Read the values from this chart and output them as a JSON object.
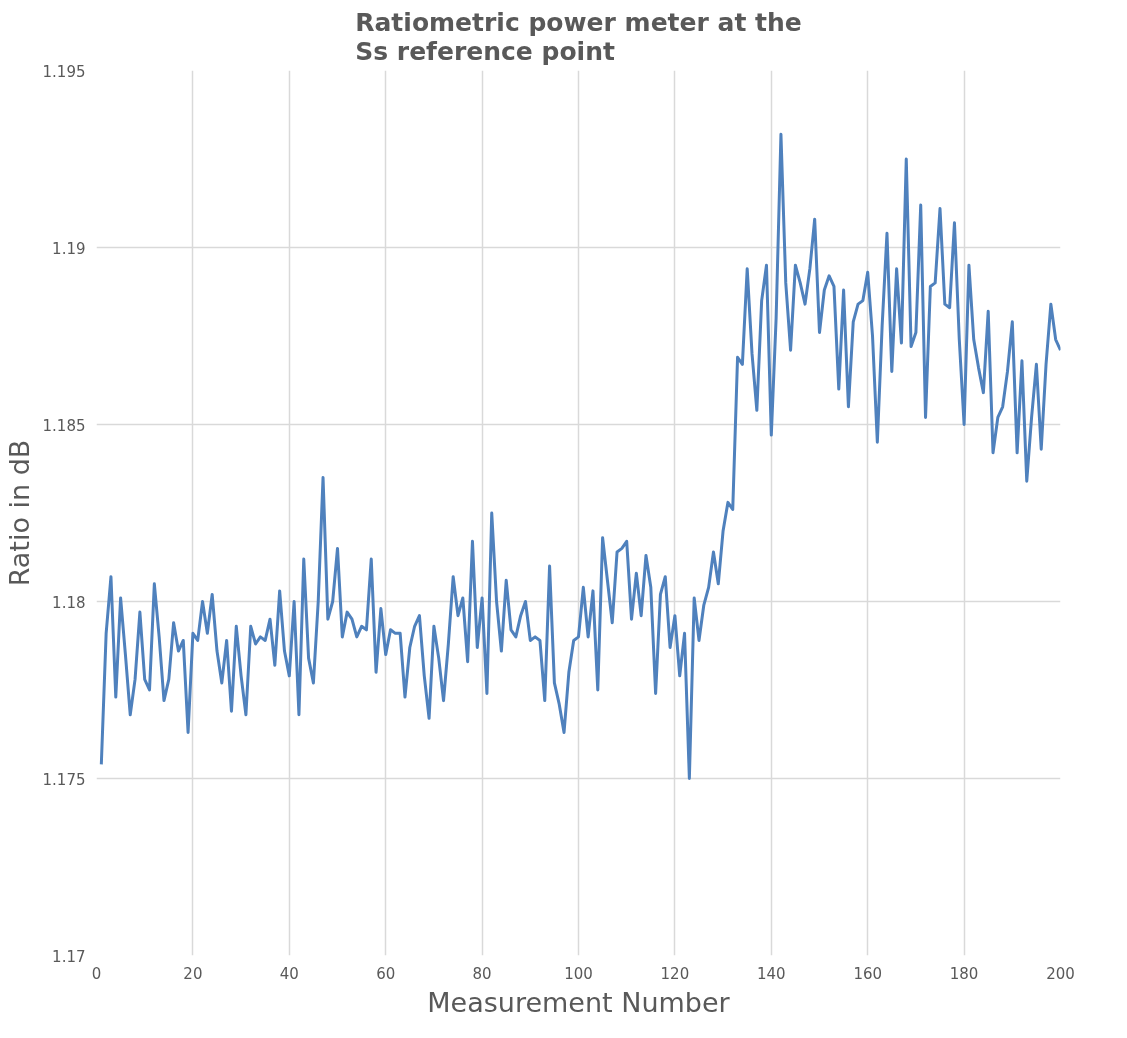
{
  "chart_data": {
    "type": "line",
    "title": "Ratiometric power meter at the\nSs reference point",
    "xlabel": "Measurement Number",
    "ylabel": "Ratio in dB",
    "x": [
      1,
      2,
      3,
      4,
      5,
      6,
      7,
      8,
      9,
      10,
      11,
      12,
      13,
      14,
      15,
      16,
      17,
      18,
      19,
      20,
      21,
      22,
      23,
      24,
      25,
      26,
      27,
      28,
      29,
      30,
      31,
      32,
      33,
      34,
      35,
      36,
      37,
      38,
      39,
      40,
      41,
      42,
      43,
      44,
      45,
      46,
      47,
      48,
      49,
      50,
      51,
      52,
      53,
      54,
      55,
      56,
      57,
      58,
      59,
      60,
      61,
      62,
      63,
      64,
      65,
      66,
      67,
      68,
      69,
      70,
      71,
      72,
      73,
      74,
      75,
      76,
      77,
      78,
      79,
      80,
      81,
      82,
      83,
      84,
      85,
      86,
      87,
      88,
      89,
      90,
      91,
      92,
      93,
      94,
      95,
      96,
      97,
      98,
      99,
      100,
      101,
      102,
      103,
      104,
      105,
      106,
      107,
      108,
      109,
      110,
      111,
      112,
      113,
      114,
      115,
      116,
      117,
      118,
      119,
      120,
      121,
      122,
      123,
      124,
      125,
      126,
      127,
      128,
      129,
      130,
      131,
      132,
      133,
      134,
      135,
      136,
      137,
      138,
      139,
      140,
      141,
      142,
      143,
      144,
      145,
      146,
      147,
      148,
      149,
      150,
      151,
      152,
      153,
      154,
      155,
      156,
      157,
      158,
      159,
      160,
      161,
      162,
      163,
      164,
      165,
      166,
      167,
      168,
      169,
      170,
      171,
      172,
      173,
      174,
      175,
      176,
      177,
      178,
      179,
      180,
      181,
      182,
      183,
      184,
      185,
      186,
      187,
      188,
      189,
      190,
      191,
      192,
      193,
      194,
      195,
      196,
      197,
      198,
      199,
      200
    ],
    "series": [
      {
        "color": "#4f81bd",
        "values": [
          1.1754,
          1.1791,
          1.1807,
          1.1773,
          1.1801,
          1.1785,
          1.1768,
          1.1778,
          1.1797,
          1.1778,
          1.1775,
          1.1805,
          1.179,
          1.1772,
          1.1778,
          1.1794,
          1.1786,
          1.1789,
          1.1763,
          1.1791,
          1.1789,
          1.18,
          1.1791,
          1.1802,
          1.1786,
          1.1777,
          1.1789,
          1.1769,
          1.1793,
          1.1779,
          1.1768,
          1.1793,
          1.1788,
          1.179,
          1.1789,
          1.1795,
          1.1782,
          1.1803,
          1.1786,
          1.1779,
          1.18,
          1.1768,
          1.1812,
          1.1784,
          1.1777,
          1.18,
          1.1835,
          1.1795,
          1.18,
          1.1815,
          1.179,
          1.1797,
          1.1795,
          1.179,
          1.1793,
          1.1792,
          1.1812,
          1.178,
          1.1798,
          1.1785,
          1.1792,
          1.1791,
          1.1791,
          1.1773,
          1.1787,
          1.1793,
          1.1796,
          1.1779,
          1.1767,
          1.1793,
          1.1784,
          1.1772,
          1.1788,
          1.1807,
          1.1796,
          1.1801,
          1.1783,
          1.1817,
          1.1787,
          1.1801,
          1.1774,
          1.1825,
          1.18,
          1.1786,
          1.1806,
          1.1792,
          1.179,
          1.1796,
          1.18,
          1.1789,
          1.179,
          1.1789,
          1.1772,
          1.181,
          1.1777,
          1.1771,
          1.1763,
          1.178,
          1.1789,
          1.179,
          1.1804,
          1.179,
          1.1803,
          1.1775,
          1.1818,
          1.1806,
          1.1794,
          1.1814,
          1.1815,
          1.1817,
          1.1795,
          1.1808,
          1.1796,
          1.1813,
          1.1804,
          1.1774,
          1.1802,
          1.1807,
          1.1787,
          1.1796,
          1.1779,
          1.1791,
          1.175,
          1.1801,
          1.1789,
          1.1799,
          1.1804,
          1.1814,
          1.1805,
          1.182,
          1.1828,
          1.1826,
          1.1869,
          1.1867,
          1.1894,
          1.187,
          1.1854,
          1.1885,
          1.1895,
          1.1847,
          1.188,
          1.1932,
          1.189,
          1.1871,
          1.1895,
          1.189,
          1.1884,
          1.1894,
          1.1908,
          1.1876,
          1.1888,
          1.1892,
          1.1889,
          1.186,
          1.1888,
          1.1855,
          1.1879,
          1.1884,
          1.1885,
          1.1893,
          1.1875,
          1.1845,
          1.1878,
          1.1904,
          1.1865,
          1.1894,
          1.1873,
          1.1925,
          1.1872,
          1.1876,
          1.1912,
          1.1852,
          1.1889,
          1.189,
          1.1911,
          1.1884,
          1.1883,
          1.1907,
          1.1874,
          1.185,
          1.1895,
          1.1874,
          1.1866,
          1.1859,
          1.1882,
          1.1842,
          1.1852,
          1.1855,
          1.1865,
          1.1879,
          1.1842,
          1.1868,
          1.1834,
          1.1852,
          1.1867,
          1.1843,
          1.1867,
          1.1884,
          1.1874,
          1.1871
        ]
      }
    ],
    "xlim": [
      0,
      200
    ],
    "xticks": [
      0,
      20,
      40,
      60,
      80,
      100,
      120,
      140,
      160,
      180,
      200
    ],
    "ylim": [
      1.17,
      1.195
    ],
    "yticks": [
      1.17,
      1.175,
      1.18,
      1.185,
      1.19,
      1.195
    ],
    "grid": true,
    "marker": "none",
    "line_style": "solid"
  }
}
